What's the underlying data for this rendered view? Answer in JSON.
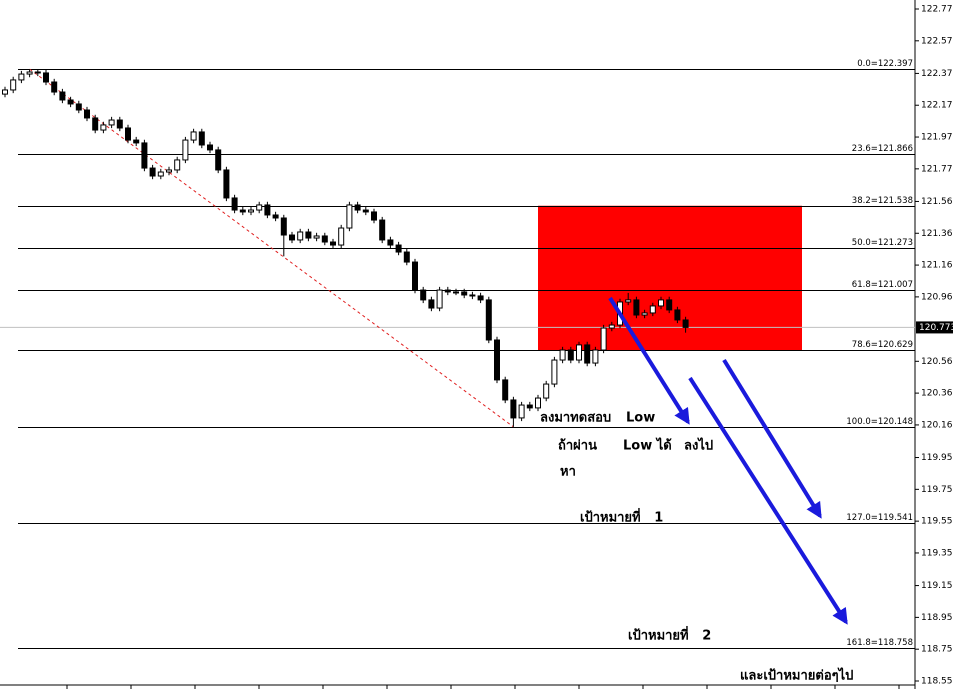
{
  "chart_data": {
    "type": "candlestick",
    "ylim": [
      118.55,
      122.775
    ],
    "yticks": [
      {
        "value": 122.775,
        "label": "122.775"
      },
      {
        "value": 122.575,
        "label": "122.575"
      },
      {
        "value": 122.37,
        "label": "122.370"
      },
      {
        "value": 122.17,
        "label": "122.170"
      },
      {
        "value": 121.97,
        "label": "121.970"
      },
      {
        "value": 121.77,
        "label": "121.770"
      },
      {
        "value": 121.565,
        "label": "121.565"
      },
      {
        "value": 121.365,
        "label": "121.365"
      },
      {
        "value": 121.165,
        "label": "121.165"
      },
      {
        "value": 120.965,
        "label": "120.965"
      },
      {
        "value": 120.56,
        "label": "120.560"
      },
      {
        "value": 120.36,
        "label": "120.360"
      },
      {
        "value": 120.16,
        "label": "120.160"
      },
      {
        "value": 119.955,
        "label": "119.955"
      },
      {
        "value": 119.755,
        "label": "119.755"
      },
      {
        "value": 119.555,
        "label": "119.555"
      },
      {
        "value": 119.355,
        "label": "119.355"
      },
      {
        "value": 119.15,
        "label": "119.150"
      },
      {
        "value": 118.95,
        "label": "118.950"
      },
      {
        "value": 118.75,
        "label": "118.750"
      },
      {
        "value": 118.55,
        "label": "118.550"
      }
    ],
    "current_price": {
      "value": 120.773,
      "label": "120.773"
    },
    "fib_levels": [
      {
        "value": 122.397,
        "label": "0.0=122.397"
      },
      {
        "value": 121.866,
        "label": "23.6=121.866"
      },
      {
        "value": 121.538,
        "label": "38.2=121.538"
      },
      {
        "value": 121.273,
        "label": "50.0=121.273"
      },
      {
        "value": 121.007,
        "label": "61.8=121.007"
      },
      {
        "value": 120.629,
        "label": "78.6=120.629"
      },
      {
        "value": 120.148,
        "label": "100.0=120.148"
      },
      {
        "value": 119.541,
        "label": "127.0=119.541"
      },
      {
        "value": 118.758,
        "label": "161.8=118.758"
      }
    ],
    "zone_color": "#ff0000",
    "annotations": [
      "ลงมาทดสอบ",
      "Low",
      "ถ้าผ่าน",
      "Low ได้",
      "ลงไป",
      "หา",
      "เป้าหมายที่   1",
      "เป้าหมายที่   2",
      "และเป้าหมายต่อๆไป"
    ],
    "open": [
      122.24,
      122.266,
      122.329,
      122.366,
      122.379,
      122.373,
      122.316,
      122.253,
      122.203,
      122.178,
      122.14,
      122.09,
      122.014,
      122.046,
      122.077,
      122.027,
      121.951,
      121.933,
      121.775,
      121.725,
      121.75,
      121.763,
      121.826,
      121.951,
      122.002,
      121.92,
      121.889,
      121.763,
      121.587,
      121.511,
      121.499,
      121.511,
      121.543,
      121.48,
      121.461,
      121.354,
      121.323,
      121.373,
      121.335,
      121.348,
      121.31,
      121.291,
      121.398,
      121.543,
      121.511,
      121.499,
      121.448,
      121.323,
      121.291,
      121.247,
      121.184,
      121.008,
      120.946,
      120.895,
      121.008,
      120.996,
      120.996,
      120.977,
      120.971,
      120.946,
      120.694,
      120.443,
      120.317,
      120.204,
      120.285,
      120.267,
      120.329,
      120.417,
      120.568,
      120.631,
      120.568,
      120.663,
      120.549,
      120.631,
      120.769,
      120.788,
      120.933,
      120.946,
      120.851,
      120.864,
      120.908,
      120.946,
      120.883,
      120.82
    ],
    "high": [
      122.286,
      122.349,
      122.386,
      122.397,
      122.395,
      122.393,
      122.336,
      122.273,
      122.223,
      122.198,
      122.16,
      122.11,
      122.066,
      122.097,
      122.097,
      122.047,
      121.971,
      121.953,
      121.795,
      121.77,
      121.783,
      121.846,
      121.971,
      122.022,
      122.022,
      121.94,
      121.909,
      121.783,
      121.607,
      121.531,
      121.531,
      121.563,
      121.563,
      121.5,
      121.481,
      121.374,
      121.393,
      121.393,
      121.368,
      121.368,
      121.33,
      121.418,
      121.563,
      121.563,
      121.531,
      121.519,
      121.468,
      121.343,
      121.311,
      121.267,
      121.204,
      121.028,
      120.966,
      121.028,
      121.028,
      121.016,
      121.016,
      120.997,
      120.991,
      120.966,
      120.714,
      120.463,
      120.337,
      120.305,
      120.305,
      120.349,
      120.437,
      120.588,
      120.651,
      120.651,
      120.683,
      120.683,
      120.651,
      120.789,
      120.808,
      120.953,
      120.99,
      120.966,
      120.884,
      120.928,
      120.966,
      120.966,
      120.903,
      120.84
    ],
    "low": [
      122.22,
      122.246,
      122.309,
      122.346,
      122.353,
      122.296,
      122.233,
      122.183,
      122.158,
      122.12,
      122.07,
      121.994,
      121.994,
      122.026,
      122.007,
      121.931,
      121.913,
      121.755,
      121.705,
      121.705,
      121.73,
      121.743,
      121.806,
      121.931,
      121.9,
      121.869,
      121.743,
      121.567,
      121.491,
      121.479,
      121.479,
      121.491,
      121.46,
      121.441,
      121.22,
      121.303,
      121.303,
      121.315,
      121.315,
      121.29,
      121.271,
      121.271,
      121.378,
      121.491,
      121.479,
      121.428,
      121.303,
      121.271,
      121.227,
      121.164,
      120.988,
      120.926,
      120.875,
      120.875,
      120.976,
      120.976,
      120.957,
      120.951,
      120.926,
      120.674,
      120.423,
      120.297,
      120.148,
      120.184,
      120.247,
      120.247,
      120.309,
      120.397,
      120.548,
      120.548,
      120.548,
      120.529,
      120.529,
      120.611,
      120.749,
      120.768,
      120.913,
      120.831,
      120.831,
      120.844,
      120.888,
      120.863,
      120.8,
      120.74
    ],
    "close": [
      122.266,
      122.329,
      122.366,
      122.379,
      122.373,
      122.316,
      122.253,
      122.203,
      122.178,
      122.14,
      122.09,
      122.014,
      122.046,
      122.077,
      122.027,
      121.951,
      121.933,
      121.775,
      121.725,
      121.75,
      121.763,
      121.826,
      121.951,
      122.002,
      121.92,
      121.889,
      121.763,
      121.587,
      121.511,
      121.499,
      121.511,
      121.543,
      121.48,
      121.461,
      121.354,
      121.323,
      121.373,
      121.335,
      121.348,
      121.31,
      121.291,
      121.398,
      121.543,
      121.511,
      121.499,
      121.448,
      121.323,
      121.291,
      121.247,
      121.184,
      121.008,
      120.946,
      120.895,
      121.008,
      120.996,
      120.996,
      120.977,
      120.971,
      120.946,
      120.694,
      120.443,
      120.317,
      120.204,
      120.285,
      120.267,
      120.329,
      120.417,
      120.568,
      120.631,
      120.568,
      120.663,
      120.549,
      120.631,
      120.769,
      120.788,
      120.933,
      120.946,
      120.851,
      120.864,
      120.908,
      120.946,
      120.883,
      120.82,
      120.773
    ]
  }
}
